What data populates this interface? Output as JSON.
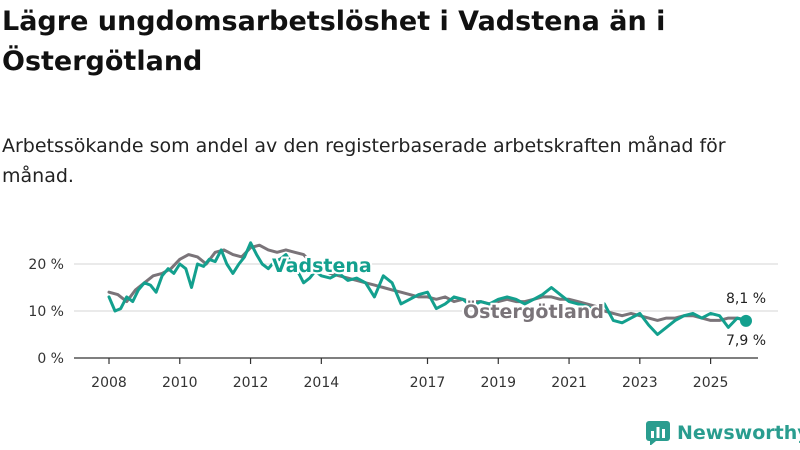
{
  "title": "Lägre ungdomsarbetslöshet i Vadstena än i Östergötland",
  "subtitle": "Arbetssökande som andel av den registerbaserade arbetskraften månad för månad.",
  "brand": {
    "name": "Newsworthy"
  },
  "colors": {
    "vadstena": "#13a08e",
    "ostergotland": "#7a7479",
    "grid": "#d6d6d6",
    "axis": "#333333"
  },
  "chart_data": {
    "type": "line",
    "title": "Lägre ungdomsarbetslöshet i Vadstena än i Östergötland",
    "xlabel": "",
    "ylabel": "",
    "x_range": [
      2008,
      2026.2
    ],
    "ylim": [
      0,
      27
    ],
    "y_ticks": [
      0,
      10,
      20
    ],
    "y_tick_labels": [
      "0 %",
      "10 %",
      "20 %"
    ],
    "x_ticks": [
      2008,
      2010,
      2012,
      2014,
      2017,
      2019,
      2021,
      2023,
      2025
    ],
    "x_tick_labels": [
      "2008",
      "2010",
      "2012",
      "2014",
      "2017",
      "2019",
      "2021",
      "2023",
      "2025"
    ],
    "series": [
      {
        "name": "Östergötland",
        "label": "Östergötland",
        "end_label": "8,1 %",
        "x": [
          2008.0,
          2008.25,
          2008.5,
          2008.75,
          2009.0,
          2009.25,
          2009.5,
          2009.75,
          2010.0,
          2010.25,
          2010.5,
          2010.75,
          2011.0,
          2011.25,
          2011.5,
          2011.75,
          2012.0,
          2012.25,
          2012.5,
          2012.75,
          2013.0,
          2013.25,
          2013.5,
          2013.75,
          2014.0,
          2014.25,
          2014.5,
          2014.75,
          2015.0,
          2015.25,
          2015.5,
          2015.75,
          2016.0,
          2016.25,
          2016.5,
          2016.75,
          2017.0,
          2017.25,
          2017.5,
          2017.75,
          2018.0,
          2018.25,
          2018.5,
          2018.75,
          2019.0,
          2019.25,
          2019.5,
          2019.75,
          2020.0,
          2020.25,
          2020.5,
          2020.75,
          2021.0,
          2021.25,
          2021.5,
          2021.75,
          2022.0,
          2022.25,
          2022.5,
          2022.75,
          2023.0,
          2023.25,
          2023.5,
          2023.75,
          2024.0,
          2024.25,
          2024.5,
          2024.75,
          2025.0,
          2025.25,
          2025.5,
          2025.75,
          2026.0
        ],
        "values": [
          14.0,
          13.5,
          12.0,
          14.5,
          16.0,
          17.5,
          18.0,
          19.0,
          21.0,
          22.0,
          21.5,
          20.0,
          22.5,
          23.0,
          22.0,
          21.5,
          23.5,
          24.0,
          23.0,
          22.5,
          23.0,
          22.5,
          22.0,
          20.0,
          19.0,
          18.0,
          17.5,
          17.0,
          16.5,
          16.0,
          15.5,
          15.0,
          14.5,
          14.0,
          13.5,
          13.0,
          13.0,
          12.5,
          13.0,
          12.0,
          12.5,
          12.0,
          12.0,
          11.5,
          12.0,
          12.5,
          12.0,
          12.0,
          12.5,
          13.0,
          13.0,
          12.5,
          12.5,
          12.0,
          11.5,
          11.0,
          10.0,
          9.5,
          9.0,
          9.5,
          9.0,
          8.5,
          8.0,
          8.5,
          8.5,
          9.0,
          9.0,
          8.5,
          8.0,
          8.0,
          8.5,
          8.5,
          8.1
        ]
      },
      {
        "name": "Vadstena",
        "label": "Vadstena",
        "end_label": "7,9 %",
        "x": [
          2008.0,
          2008.17,
          2008.33,
          2008.5,
          2008.67,
          2008.83,
          2009.0,
          2009.17,
          2009.33,
          2009.5,
          2009.67,
          2009.83,
          2010.0,
          2010.17,
          2010.33,
          2010.5,
          2010.67,
          2010.83,
          2011.0,
          2011.17,
          2011.33,
          2011.5,
          2011.67,
          2011.83,
          2012.0,
          2012.17,
          2012.33,
          2012.5,
          2012.67,
          2012.83,
          2013.0,
          2013.17,
          2013.33,
          2013.5,
          2013.67,
          2013.83,
          2014.0,
          2014.25,
          2014.5,
          2014.75,
          2015.0,
          2015.25,
          2015.5,
          2015.75,
          2016.0,
          2016.25,
          2016.5,
          2016.75,
          2017.0,
          2017.25,
          2017.5,
          2017.75,
          2018.0,
          2018.25,
          2018.5,
          2018.75,
          2019.0,
          2019.25,
          2019.5,
          2019.75,
          2020.0,
          2020.25,
          2020.5,
          2020.75,
          2021.0,
          2021.25,
          2021.5,
          2021.75,
          2022.0,
          2022.25,
          2022.5,
          2022.75,
          2023.0,
          2023.25,
          2023.5,
          2023.75,
          2024.0,
          2024.25,
          2024.5,
          2024.75,
          2025.0,
          2025.25,
          2025.5,
          2025.75,
          2026.0
        ],
        "values": [
          13.0,
          10.0,
          10.5,
          13.0,
          12.0,
          14.5,
          16.0,
          15.5,
          14.0,
          17.5,
          19.0,
          18.0,
          20.0,
          19.0,
          15.0,
          20.0,
          19.5,
          21.0,
          20.5,
          23.0,
          20.0,
          18.0,
          20.0,
          21.5,
          24.5,
          22.0,
          20.0,
          19.0,
          20.5,
          21.0,
          22.0,
          20.0,
          18.5,
          16.0,
          17.0,
          18.5,
          17.5,
          17.0,
          18.0,
          16.5,
          17.0,
          16.0,
          13.0,
          17.5,
          16.0,
          11.5,
          12.5,
          13.5,
          14.0,
          10.5,
          11.5,
          13.0,
          12.5,
          11.0,
          12.0,
          11.5,
          12.5,
          13.0,
          12.5,
          11.5,
          12.5,
          13.5,
          15.0,
          13.5,
          12.0,
          11.5,
          11.0,
          10.0,
          11.5,
          8.0,
          7.5,
          8.5,
          9.5,
          7.0,
          5.0,
          6.5,
          8.0,
          9.0,
          9.5,
          8.5,
          9.5,
          9.0,
          6.5,
          8.5,
          7.9
        ]
      }
    ]
  }
}
